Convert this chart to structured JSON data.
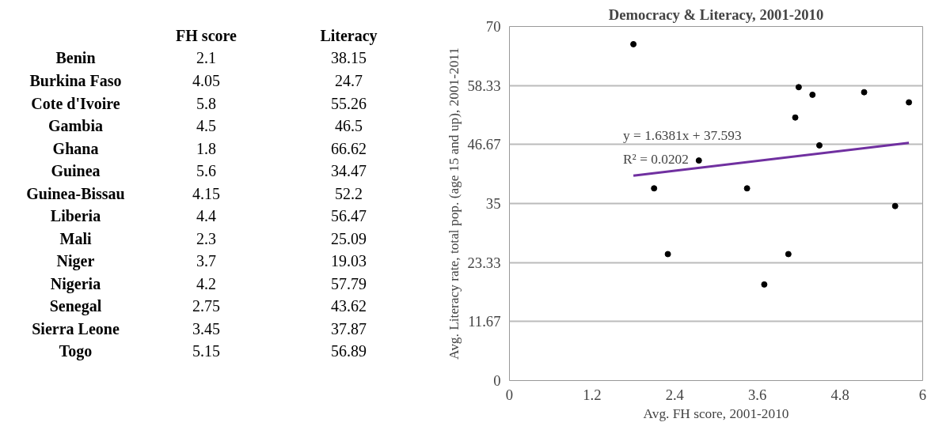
{
  "chart_data": [
    {
      "type": "other",
      "categories": [
        "Benin",
        "Burkina Faso",
        "Cote d'Ivoire",
        "Gambia",
        "Ghana",
        "Guinea",
        "Guinea-Bissau",
        "Liberia",
        "Mali",
        "Niger",
        "Nigeria",
        "Senegal",
        "Sierra Leone",
        "Togo"
      ],
      "series": [
        {
          "name": "FH score",
          "values": [
            2.1,
            4.05,
            5.8,
            4.5,
            1.8,
            5.6,
            4.15,
            4.4,
            2.3,
            3.7,
            4.2,
            2.75,
            3.45,
            5.15
          ]
        },
        {
          "name": "Literacy",
          "values": [
            38.15,
            24.7,
            55.26,
            46.5,
            66.62,
            34.47,
            52.2,
            56.47,
            25.09,
            19.03,
            57.79,
            43.62,
            37.87,
            56.89
          ]
        }
      ],
      "data_labels": true
    },
    {
      "type": "scatter",
      "title": "Democracy & Literacy, 2001-2010",
      "xlabel": "Avg. FH score, 2001-2010",
      "ylabel": "Avg. Literacy rate, total pop. (age 15 and up), 2001-2011",
      "series": [
        {
          "type": "scatter",
          "color": "#000000",
          "marker": "circle",
          "x": [
            2.1,
            4.05,
            5.8,
            4.5,
            1.8,
            5.6,
            4.15,
            4.4,
            2.3,
            3.7,
            4.2,
            2.75,
            3.45,
            5.15
          ],
          "values": [
            38,
            25,
            55,
            46.5,
            66.5,
            34.5,
            52,
            56.5,
            25,
            19,
            58,
            43.5,
            38,
            57
          ]
        },
        {
          "type": "line",
          "color": "#7030a0",
          "marker": "none",
          "line_style": "solid",
          "x": [
            1.8,
            5.8
          ],
          "values": [
            40.5,
            47
          ]
        }
      ],
      "annotations": [
        "y = 1.6381x + 37.593",
        "R² = 0.0202"
      ],
      "xlim": [
        0,
        6
      ],
      "xticks": [
        0,
        1.2,
        2.4,
        3.6,
        4.8,
        6
      ],
      "ylim": [
        0,
        70
      ],
      "yticks": [
        0,
        11.67,
        23.33,
        35,
        46.67,
        58.33,
        70
      ],
      "grid": "y"
    }
  ]
}
